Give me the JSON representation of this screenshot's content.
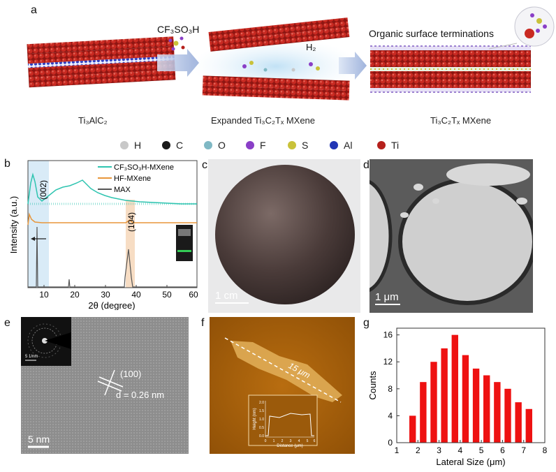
{
  "panel_letters": {
    "a": "a",
    "b": "b",
    "c": "c",
    "d": "d",
    "e": "e",
    "f": "f",
    "g": "g"
  },
  "panel_a": {
    "reagent": "CF₃SO₃H",
    "gas": "H₂",
    "terminations_title": "Organic surface terminations",
    "captions": [
      "Ti₃AlC₂",
      "Expanded Ti₃C₂Tₓ  MXene",
      "Ti₃C₂Tₓ  MXene"
    ]
  },
  "element_legend": [
    {
      "symbol": "H",
      "color": "#c8c8c8"
    },
    {
      "symbol": "C",
      "color": "#1a1a1a"
    },
    {
      "symbol": "O",
      "color": "#7fb8c4"
    },
    {
      "symbol": "F",
      "color": "#8a3fc7"
    },
    {
      "symbol": "S",
      "color": "#c9c23a"
    },
    {
      "symbol": "Al",
      "color": "#2236b5"
    },
    {
      "symbol": "Ti",
      "color": "#b5201c"
    }
  ],
  "xrd": {
    "ylabel": "Intensity (a.u.)",
    "xlabel": "2θ (degree)",
    "xticks": [
      "10",
      "20",
      "30",
      "40",
      "50",
      "60"
    ],
    "peak_labels": [
      "(002)",
      "(104)"
    ],
    "legend": [
      {
        "name": "CF₃SO₃H-MXene",
        "color": "#2ec4b0"
      },
      {
        "name": "HF-MXene",
        "color": "#e8963a"
      },
      {
        "name": "MAX",
        "color": "#555555"
      }
    ]
  },
  "panel_c": {
    "scale": "1 cm"
  },
  "panel_d": {
    "scale": "1 μm"
  },
  "panel_e": {
    "plane": "(100)",
    "spacing": "d = 0.26 nm",
    "scale": "5 nm",
    "inset_scale": "5 1/nm"
  },
  "panel_f": {
    "length": "15 μm",
    "inset_ylabel": "Height (nm)",
    "inset_xlabel": "Distance (μm)",
    "inset_yticks": [
      "0.0",
      "0.5",
      "1.0",
      "1.5",
      "2.0"
    ],
    "inset_xticks": [
      "0",
      "1",
      "2",
      "3",
      "4",
      "5",
      "6"
    ]
  },
  "chart_data": {
    "type": "bar",
    "xlabel": "Lateral Size (μm)",
    "ylabel": "Counts",
    "x": [
      1.75,
      2.25,
      2.75,
      3.25,
      3.75,
      4.25,
      4.75,
      5.25,
      5.75,
      6.25,
      6.75,
      7.25
    ],
    "values": [
      4,
      9,
      12,
      14,
      16,
      13,
      11,
      10,
      9,
      8,
      6,
      5
    ],
    "xlim": [
      1,
      8
    ],
    "ylim": [
      0,
      17
    ],
    "xticks": [
      1,
      2,
      3,
      4,
      5,
      6,
      7,
      8
    ],
    "yticks": [
      0,
      4,
      8,
      12,
      16
    ],
    "bar_color": "#ee1111"
  }
}
